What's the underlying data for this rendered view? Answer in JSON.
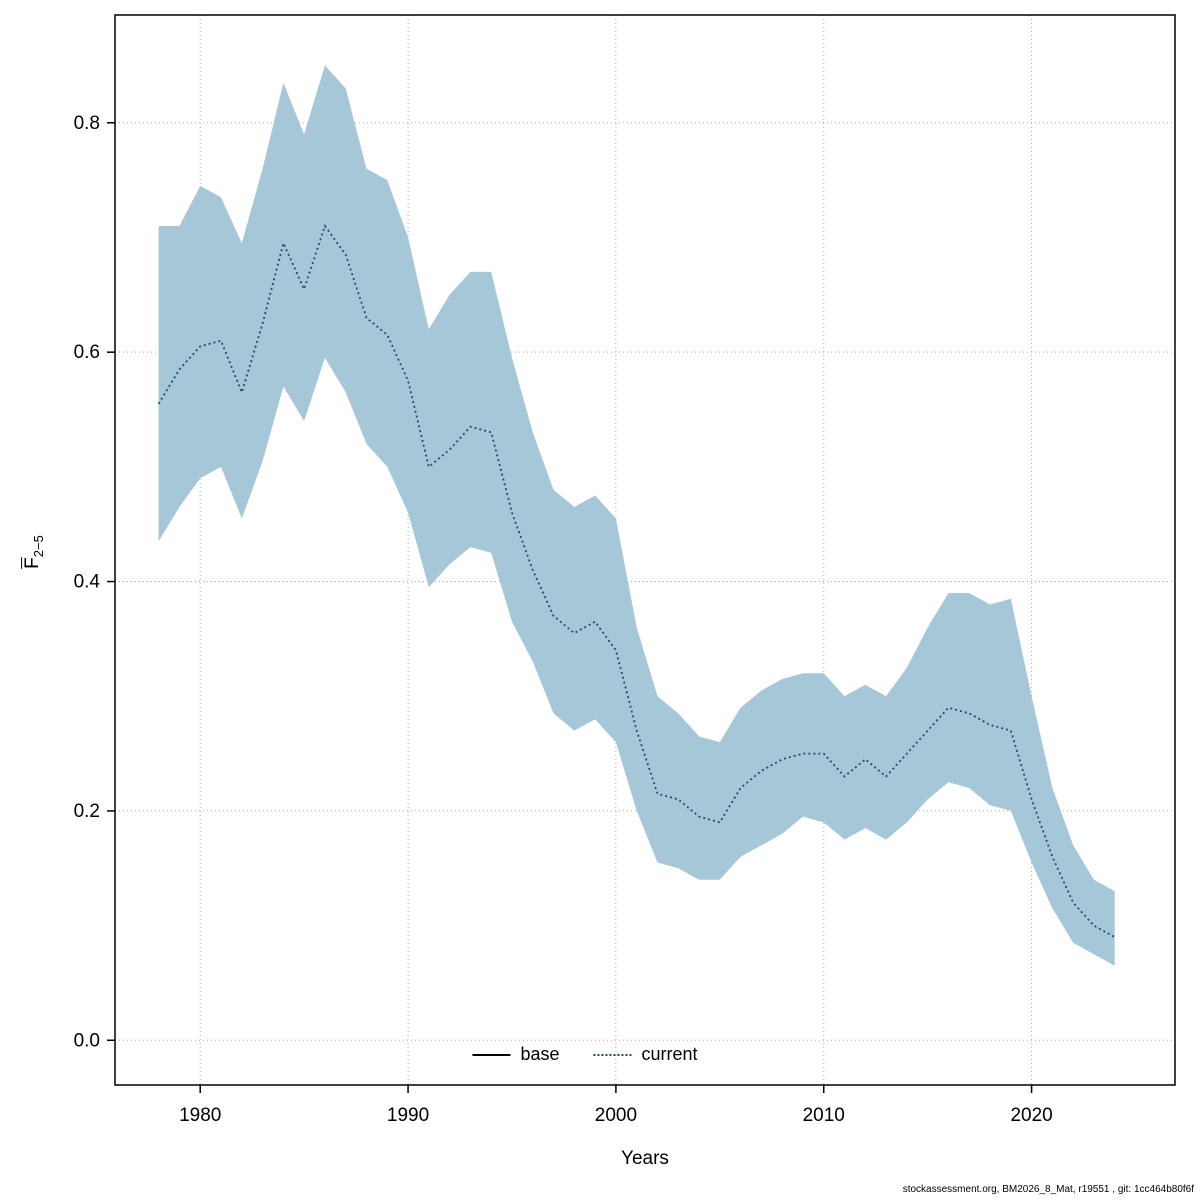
{
  "figure": {
    "ylabel_base": "F",
    "ylabel_sub": "2−5",
    "footer": "stockassessment.org, BM2026_8_Mat, r19551 , git: 1cc464b80f6f"
  },
  "legend": {
    "items": [
      {
        "label": "base",
        "style": "solid",
        "color": "#000000"
      },
      {
        "label": "current",
        "style": "dotted",
        "color": "#16506b"
      }
    ]
  },
  "chart_data": {
    "type": "line",
    "title": "",
    "xlabel": "Years",
    "ylabel": "Fbar 2-5",
    "grid": true,
    "legend_position": "bottom-center-inside",
    "x_ticks": [
      1980,
      1990,
      2000,
      2010,
      2020
    ],
    "y_ticks": [
      0.0,
      0.2,
      0.4,
      0.6,
      0.8
    ],
    "xlim": [
      1975.9,
      2026.9
    ],
    "ylim": [
      -0.039,
      0.894
    ],
    "band_color": "#a6c7d7",
    "line_color": "#16506b",
    "grid_color": "#a8a8a8",
    "years": [
      1978,
      1979,
      1980,
      1981,
      1982,
      1983,
      1984,
      1985,
      1986,
      1987,
      1988,
      1989,
      1990,
      1991,
      1992,
      1993,
      1994,
      1995,
      1996,
      1997,
      1998,
      1999,
      2000,
      2001,
      2002,
      2003,
      2004,
      2005,
      2006,
      2007,
      2008,
      2009,
      2010,
      2011,
      2012,
      2013,
      2014,
      2015,
      2016,
      2017,
      2018,
      2019,
      2020,
      2021,
      2022,
      2023,
      2024
    ],
    "series": [
      {
        "name": "current",
        "values": [
          0.555,
          0.585,
          0.605,
          0.61,
          0.565,
          0.625,
          0.695,
          0.655,
          0.71,
          0.685,
          0.63,
          0.615,
          0.575,
          0.5,
          0.515,
          0.535,
          0.53,
          0.46,
          0.41,
          0.37,
          0.355,
          0.365,
          0.34,
          0.27,
          0.215,
          0.21,
          0.195,
          0.19,
          0.22,
          0.235,
          0.245,
          0.25,
          0.25,
          0.23,
          0.245,
          0.23,
          0.25,
          0.27,
          0.29,
          0.285,
          0.275,
          0.27,
          0.21,
          0.16,
          0.12,
          0.1,
          0.09
        ]
      }
    ],
    "band": {
      "name": "confidence-interval",
      "lower": [
        0.435,
        0.465,
        0.49,
        0.5,
        0.455,
        0.505,
        0.57,
        0.54,
        0.595,
        0.565,
        0.52,
        0.5,
        0.46,
        0.395,
        0.415,
        0.43,
        0.425,
        0.365,
        0.33,
        0.285,
        0.27,
        0.28,
        0.26,
        0.2,
        0.155,
        0.15,
        0.14,
        0.14,
        0.16,
        0.17,
        0.18,
        0.195,
        0.19,
        0.175,
        0.185,
        0.175,
        0.19,
        0.21,
        0.225,
        0.22,
        0.205,
        0.2,
        0.155,
        0.115,
        0.085,
        0.075,
        0.065
      ],
      "upper": [
        0.71,
        0.71,
        0.745,
        0.735,
        0.695,
        0.76,
        0.835,
        0.79,
        0.85,
        0.83,
        0.76,
        0.75,
        0.7,
        0.62,
        0.65,
        0.67,
        0.67,
        0.595,
        0.53,
        0.48,
        0.465,
        0.475,
        0.455,
        0.36,
        0.3,
        0.285,
        0.265,
        0.26,
        0.29,
        0.305,
        0.315,
        0.32,
        0.32,
        0.3,
        0.31,
        0.3,
        0.325,
        0.36,
        0.39,
        0.39,
        0.38,
        0.385,
        0.3,
        0.22,
        0.17,
        0.14,
        0.13
      ]
    }
  }
}
